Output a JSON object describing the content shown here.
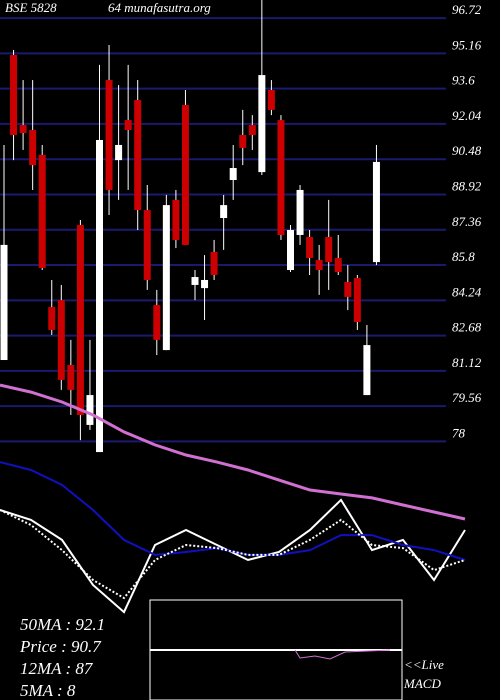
{
  "chart_data": [
    {
      "type": "candlestick",
      "title": "BSE 5828",
      "subtitle": "64  munafasutra.org",
      "up_color": "#ffffff",
      "down_color": "#cc0000",
      "grid_color": "#1a1a6e",
      "ylim": [
        77.4,
        97.52
      ],
      "yticks": [
        96.72,
        95.16,
        93.6,
        92.04,
        90.48,
        88.92,
        87.36,
        85.8,
        84.24,
        82.68,
        81.12,
        79.56,
        78
      ],
      "open": [
        81.6,
        95.09,
        91.99,
        91.77,
        90.67,
        83.94,
        84.25,
        81.38,
        87.57,
        78.73,
        77.53,
        93.98,
        90.44,
        92.21,
        93.1,
        88.23,
        84.03,
        82.04,
        88.68,
        92.88,
        84.92,
        84.78,
        86.38,
        87.88,
        89.56,
        91.55,
        91.99,
        89.91,
        93.54,
        92.21,
        85.58,
        87.13,
        87.04,
        86.02,
        87.04,
        86.11,
        85.05,
        85.23,
        80.05,
        85.93
      ],
      "high": [
        91.11,
        95.31,
        93.98,
        93.98,
        91.11,
        85.14,
        84.92,
        82.49,
        87.79,
        82.49,
        94.65,
        95.53,
        93.76,
        94.65,
        93.98,
        89.34,
        84.7,
        88.9,
        89.12,
        93.54,
        85.58,
        86.24,
        86.91,
        88.9,
        91.11,
        92.66,
        92.43,
        97.52,
        93.98,
        92.43,
        87.57,
        89.34,
        87.35,
        86.69,
        88.68,
        87.13,
        85.8,
        85.36,
        83.15,
        91.11
      ],
      "low": [
        81.6,
        90.44,
        90.89,
        89.12,
        85.58,
        82.71,
        80.28,
        79.17,
        78.06,
        78.51,
        77.53,
        88.01,
        88.68,
        89.12,
        87.35,
        84.7,
        81.82,
        82.04,
        86.55,
        86.69,
        84.25,
        83.37,
        85.14,
        86.47,
        88.68,
        90.22,
        90.89,
        89.78,
        92.43,
        86.91,
        85.49,
        86.69,
        85.36,
        84.48,
        84.7,
        85.36,
        83.81,
        82.93,
        80.05,
        85.8
      ],
      "close": [
        86.69,
        91.55,
        91.64,
        90.22,
        85.67,
        82.93,
        80.72,
        80.28,
        79.17,
        80.05,
        91.33,
        89.12,
        91.11,
        91.77,
        88.23,
        85.14,
        82.49,
        88.45,
        86.91,
        86.69,
        85.27,
        85.14,
        85.36,
        88.45,
        90.09,
        90.98,
        91.55,
        94.2,
        92.66,
        87.13,
        87.35,
        89.12,
        86.11,
        85.58,
        85.93,
        85.49,
        84.39,
        83.28,
        82.26,
        90.36
      ]
    },
    {
      "type": "line",
      "ylim": [
        -10,
        100
      ],
      "series": [
        {
          "name": "50MA : 92.1",
          "color": "#d070d0",
          "style": "solid",
          "values": [
            97.7,
            94.5,
            90,
            84.1,
            76.4,
            70.5,
            65.9,
            62.7,
            59.1,
            54.5,
            50,
            48.2,
            46.4,
            43.2,
            40,
            36.8
          ]
        },
        {
          "name": "Price : 90.7",
          "color": "#ffffff",
          "style": "solid",
          "values": [
            40.9,
            36.4,
            27.3,
            6.8,
            -5.5,
            25,
            31.8,
            25,
            18.2,
            21.8,
            31.8,
            45.5,
            22.7,
            27.3,
            9.1,
            31.8
          ]
        },
        {
          "name": "12MA : 87",
          "color": "#1010c0",
          "style": "solid",
          "values": [
            62.7,
            59.1,
            52.3,
            40.9,
            27.3,
            20.5,
            21.8,
            23.6,
            20.5,
            20.5,
            22.7,
            29.5,
            29.5,
            25,
            22.7,
            18.2
          ]
        },
        {
          "name": "5MA : 8",
          "color": "#ffffff",
          "style": "dotted",
          "values": [
            40.9,
            34.1,
            22.7,
            9.1,
            0.9,
            18.2,
            25,
            23.6,
            20.5,
            20.5,
            27.3,
            36.4,
            25,
            23.6,
            13.6,
            18.2
          ]
        }
      ],
      "annotations": [
        "<<Live",
        "MACD"
      ]
    }
  ]
}
